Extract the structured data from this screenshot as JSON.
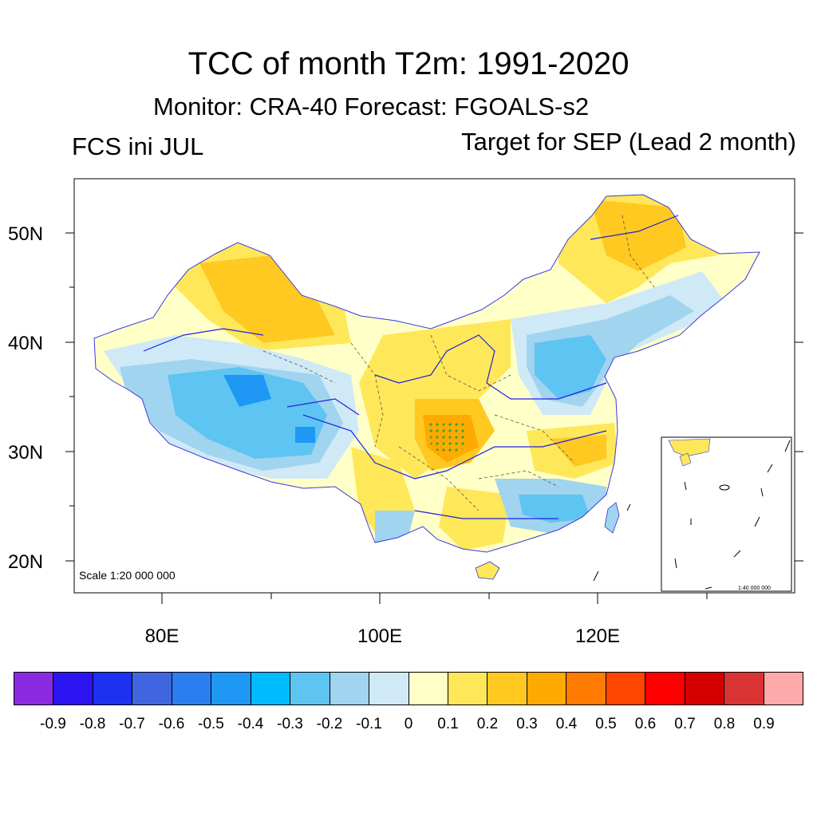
{
  "title": "TCC of month T2m: 1991-2020",
  "subtitle": "Monitor: CRA-40   Forecast: FGOALS-s2",
  "left_label": "FCS ini JUL",
  "right_label": "Target for SEP (Lead 2 month)",
  "map": {
    "scale_text": "Scale 1:20 000 000",
    "inset_scale_text": "1:40 000 000",
    "lat_labels": [
      "50N",
      "40N",
      "30N",
      "20N"
    ],
    "lon_labels": [
      "80E",
      "100E",
      "120E"
    ]
  },
  "colorbar": {
    "colors": [
      "#8a2be2",
      "#2b14f0",
      "#1c32f0",
      "#3f66e0",
      "#2b7ef0",
      "#1e98f4",
      "#00bcff",
      "#5ec4f2",
      "#a0d4ef",
      "#cfe9f6",
      "#ffffc8",
      "#ffe75a",
      "#ffc922",
      "#ffaa00",
      "#ff7c00",
      "#ff4600",
      "#ff0000",
      "#d40000",
      "#d93333",
      "#ffaaaa"
    ],
    "labels": [
      "-0.9",
      "-0.8",
      "-0.7",
      "-0.6",
      "-0.5",
      "-0.4",
      "-0.3",
      "-0.2",
      "-0.1",
      "0",
      "0.1",
      "0.2",
      "0.3",
      "0.4",
      "0.5",
      "0.6",
      "0.7",
      "0.8",
      "0.9"
    ]
  }
}
